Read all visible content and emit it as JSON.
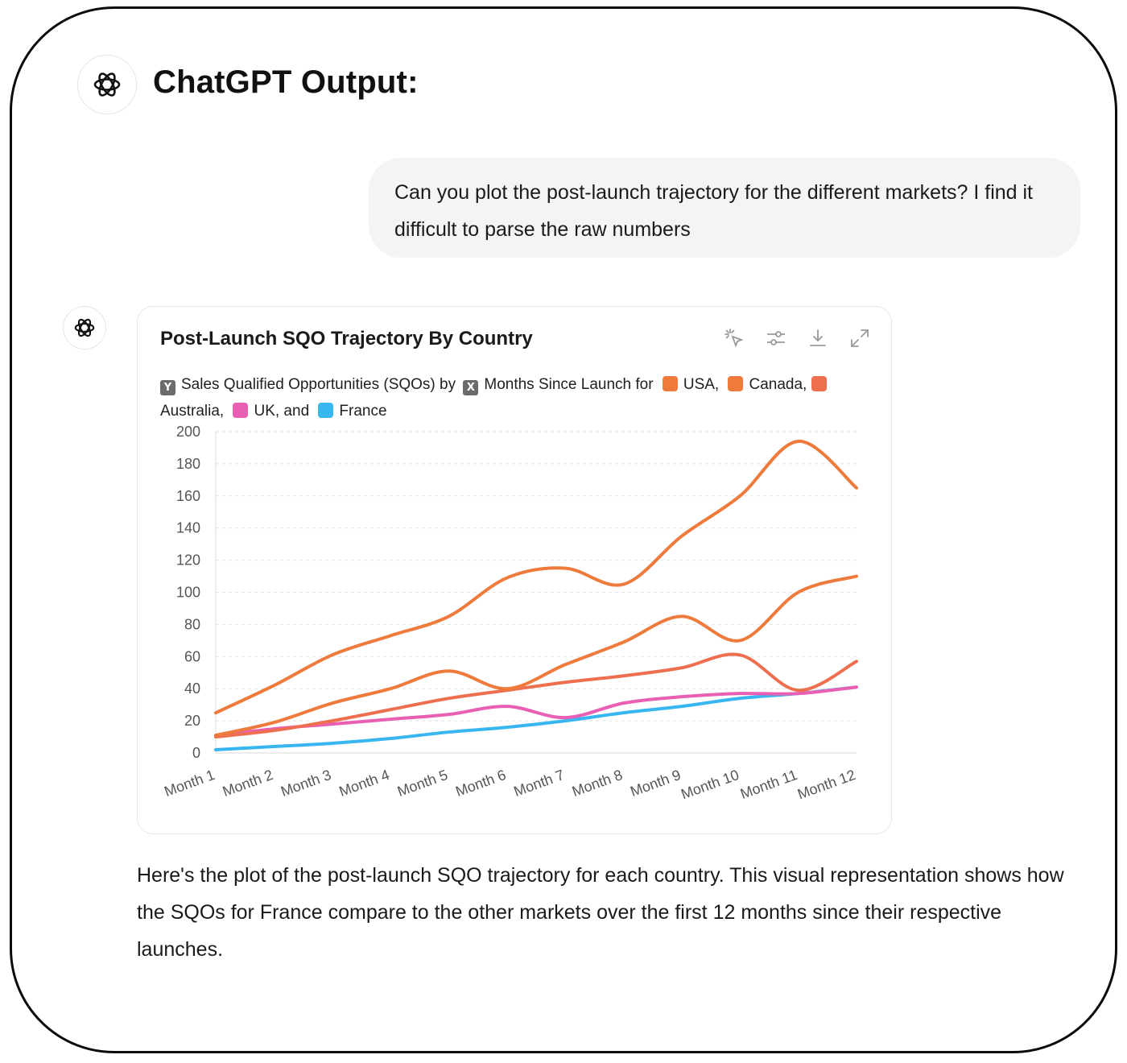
{
  "header": {
    "title": "ChatGPT Output:"
  },
  "user_message": "Can you plot the post-launch trajectory for the different markets? I find it difficult to parse the raw numbers",
  "chart_card": {
    "title": "Post-Launch SQO Trajectory By Country",
    "tools": [
      "select-icon",
      "filter-icon",
      "download-icon",
      "expand-icon"
    ],
    "legend": {
      "y_tag": "Y",
      "y_text": "Sales Qualified Opportunities (SQOs) by",
      "x_tag": "X",
      "x_text": "Months Since Launch for",
      "items": [
        {
          "label": "USA,",
          "color": "#ee7a3c"
        },
        {
          "label": "Canada,",
          "color": "#ee7a3c"
        },
        {
          "label": "Australia,",
          "color": "#ee6f4f"
        },
        {
          "label": "UK, and",
          "color": "#e95fb4"
        },
        {
          "label": "France",
          "color": "#38b6ef"
        }
      ]
    }
  },
  "chart_data": {
    "type": "line",
    "categories": [
      "Month 1",
      "Month 2",
      "Month 3",
      "Month 4",
      "Month 5",
      "Month 6",
      "Month 7",
      "Month 8",
      "Month 9",
      "Month 10",
      "Month 11",
      "Month 12"
    ],
    "ylim": [
      0,
      200
    ],
    "yticks": [
      0,
      20,
      40,
      60,
      80,
      100,
      120,
      140,
      160,
      180,
      200
    ],
    "grid": true,
    "series": [
      {
        "name": "USA",
        "color": "#ee7a3c",
        "values": [
          25,
          42,
          61,
          73,
          85,
          109,
          115,
          105,
          135,
          160,
          194,
          165
        ]
      },
      {
        "name": "Canada",
        "color": "#ee7a3c",
        "values": [
          11,
          19,
          31,
          40,
          51,
          40,
          55,
          69,
          85,
          70,
          100,
          110
        ]
      },
      {
        "name": "Australia",
        "color": "#ee6f4f",
        "values": [
          10,
          14,
          20,
          27,
          34,
          39,
          44,
          48,
          53,
          61,
          39,
          57
        ]
      },
      {
        "name": "UK",
        "color": "#e95fb4",
        "values": [
          11,
          15,
          18,
          21,
          24,
          29,
          22,
          31,
          35,
          37,
          37,
          41
        ]
      },
      {
        "name": "France",
        "color": "#38b6ef",
        "values": [
          2,
          4,
          6,
          9,
          13,
          16,
          20,
          25,
          29,
          34,
          37,
          41
        ]
      }
    ]
  },
  "answer": "Here's the plot of the post-launch SQO trajectory for each country. This visual representation shows how the SQOs for France compare to the other markets over the first 12 months since their respective launches."
}
